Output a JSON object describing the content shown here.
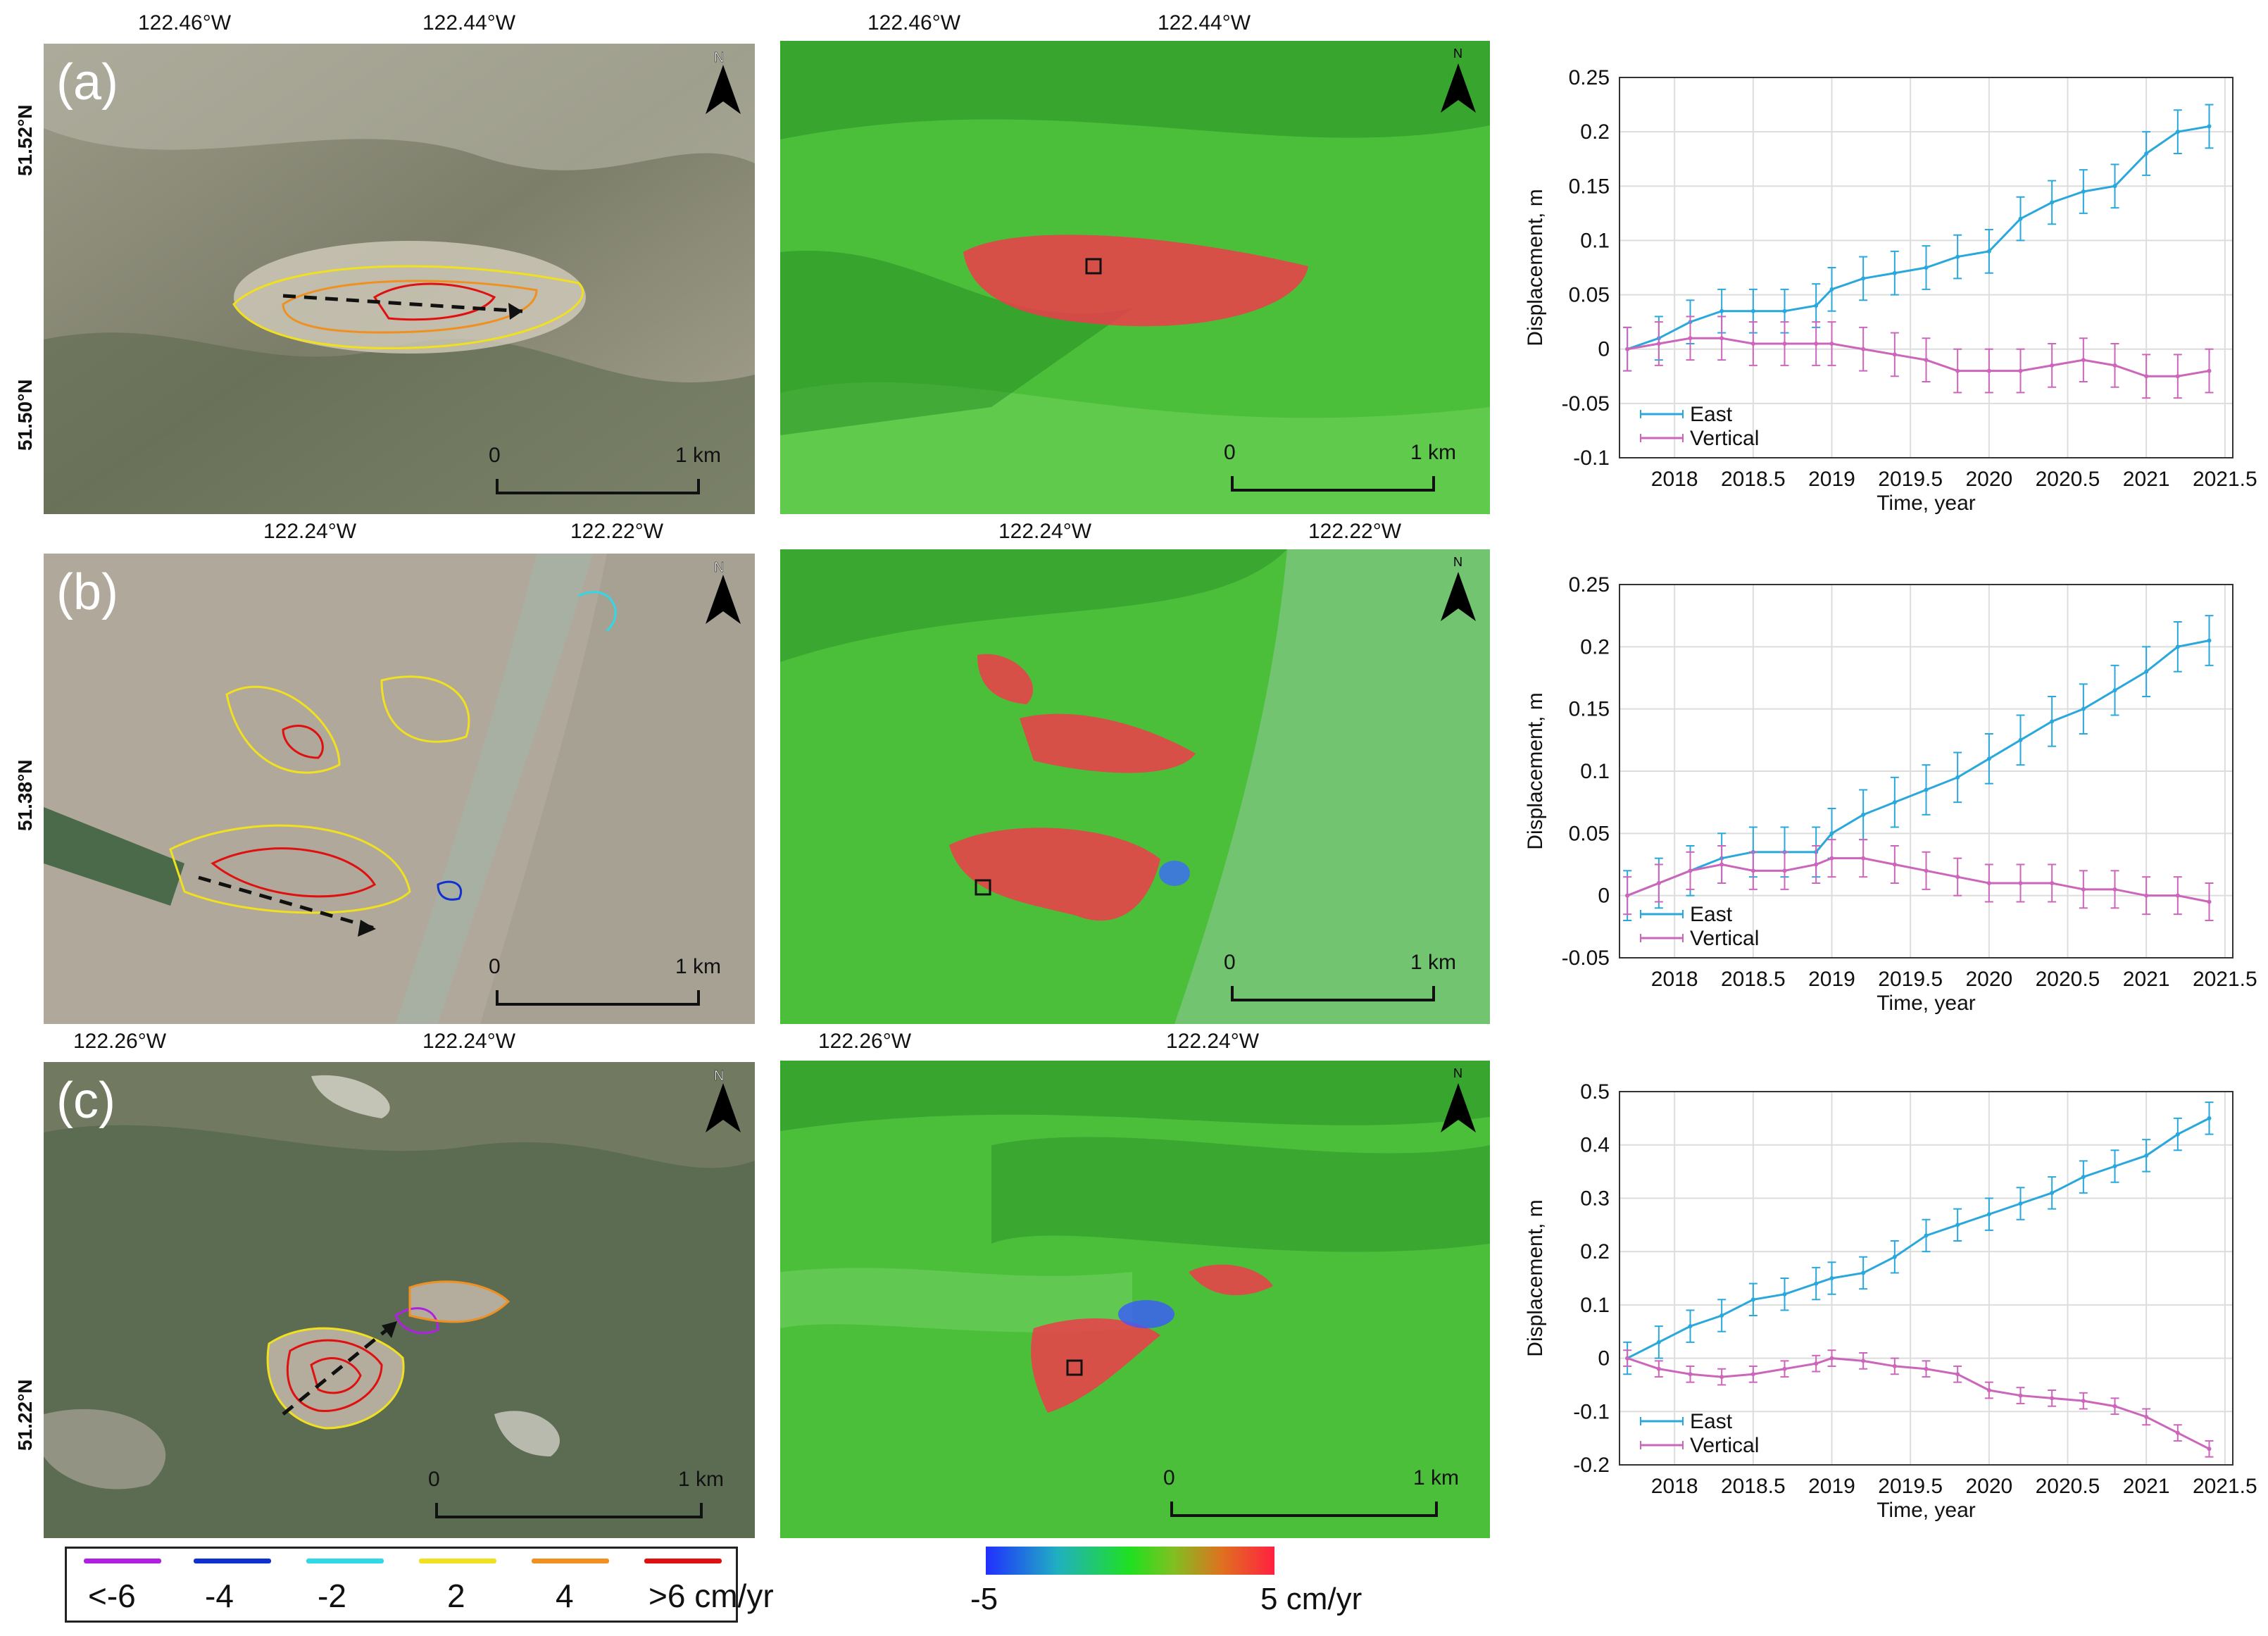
{
  "rows": [
    {
      "label": "(a)",
      "optical_lon_ticks": [
        "122.46°W",
        "122.44°W"
      ],
      "optical_lat_ticks": [
        "51.52°N",
        "51.50°N"
      ],
      "velocity_lon_ticks": [
        "122.46°W",
        "122.44°W"
      ],
      "scale_start": "0",
      "scale_end": "1 km",
      "north": "N"
    },
    {
      "label": "(b)",
      "optical_lon_ticks": [
        "122.24°W",
        "122.22°W"
      ],
      "optical_lat_ticks": [
        "51.38°N"
      ],
      "velocity_lon_ticks": [
        "122.24°W",
        "122.22°W"
      ],
      "scale_start": "0",
      "scale_end": "1 km",
      "north": "N"
    },
    {
      "label": "(c)",
      "optical_lon_ticks": [
        "122.26°W",
        "122.24°W"
      ],
      "optical_lat_ticks": [
        "51.22°N"
      ],
      "velocity_lon_ticks": [
        "122.26°W",
        "122.24°W"
      ],
      "scale_start": "0",
      "scale_end": "1 km",
      "north": "N"
    }
  ],
  "contour_legend": {
    "items": [
      {
        "label": "<-6",
        "color": "#b020e0"
      },
      {
        "label": "-4",
        "color": "#1030d0"
      },
      {
        "label": "-2",
        "color": "#30d8e8"
      },
      {
        "label": "2",
        "color": "#f0e020"
      },
      {
        "label": "4",
        "color": "#f09020"
      },
      {
        "label": ">6 cm/yr",
        "color": "#e01010"
      }
    ]
  },
  "colorbar": {
    "min_label": "-5",
    "max_label": "5 cm/yr"
  },
  "chart_data": [
    {
      "type": "line",
      "title": "",
      "xlabel": "Time, year",
      "ylabel": "Displacement, m",
      "xlim": [
        2017.65,
        2021.55
      ],
      "ylim": [
        -0.1,
        0.25
      ],
      "xticks": [
        2018,
        2018.5,
        2019,
        2019.5,
        2020,
        2020.5,
        2021,
        2021.5
      ],
      "xtick_labels": [
        "2018",
        "2018.5",
        "2019",
        "2019.5",
        "2020",
        "2020.5",
        "2021",
        "2021.5"
      ],
      "yticks": [
        -0.1,
        -0.05,
        0,
        0.05,
        0.1,
        0.15,
        0.2,
        0.25
      ],
      "ytick_labels": [
        "-0.1",
        "-0.05",
        "0",
        "0.05",
        "0.1",
        "0.15",
        "0.2",
        "0.25"
      ],
      "legend": "bottom-left",
      "series": [
        {
          "name": "East",
          "color": "#2aa8dc",
          "err": 0.02,
          "x": [
            2017.7,
            2017.9,
            2018.1,
            2018.3,
            2018.5,
            2018.7,
            2018.9,
            2019.0,
            2019.2,
            2019.4,
            2019.6,
            2019.8,
            2020.0,
            2020.2,
            2020.4,
            2020.6,
            2020.8,
            2021.0,
            2021.2,
            2021.4
          ],
          "y": [
            0.0,
            0.01,
            0.025,
            0.035,
            0.035,
            0.035,
            0.04,
            0.055,
            0.065,
            0.07,
            0.075,
            0.085,
            0.09,
            0.12,
            0.135,
            0.145,
            0.15,
            0.18,
            0.2,
            0.205
          ]
        },
        {
          "name": "Vertical",
          "color": "#cc66bb",
          "err": 0.02,
          "x": [
            2017.7,
            2017.9,
            2018.1,
            2018.3,
            2018.5,
            2018.7,
            2018.9,
            2019.0,
            2019.2,
            2019.4,
            2019.6,
            2019.8,
            2020.0,
            2020.2,
            2020.4,
            2020.6,
            2020.8,
            2021.0,
            2021.2,
            2021.4
          ],
          "y": [
            0.0,
            0.005,
            0.01,
            0.01,
            0.005,
            0.005,
            0.005,
            0.005,
            0.0,
            -0.005,
            -0.01,
            -0.02,
            -0.02,
            -0.02,
            -0.015,
            -0.01,
            -0.015,
            -0.025,
            -0.025,
            -0.02
          ]
        }
      ]
    },
    {
      "type": "line",
      "title": "",
      "xlabel": "Time, year",
      "ylabel": "Displacement, m",
      "xlim": [
        2017.65,
        2021.55
      ],
      "ylim": [
        -0.05,
        0.25
      ],
      "xticks": [
        2018,
        2018.5,
        2019,
        2019.5,
        2020,
        2020.5,
        2021,
        2021.5
      ],
      "xtick_labels": [
        "2018",
        "2018.5",
        "2019",
        "2019.5",
        "2020",
        "2020.5",
        "2021",
        "2021.5"
      ],
      "yticks": [
        -0.05,
        0,
        0.05,
        0.1,
        0.15,
        0.2,
        0.25
      ],
      "ytick_labels": [
        "-0.05",
        "0",
        "0.05",
        "0.1",
        "0.15",
        "0.2",
        "0.25"
      ],
      "legend": "bottom-left",
      "series": [
        {
          "name": "East",
          "color": "#2aa8dc",
          "err": 0.02,
          "x": [
            2017.7,
            2017.9,
            2018.1,
            2018.3,
            2018.5,
            2018.7,
            2018.9,
            2019.0,
            2019.2,
            2019.4,
            2019.6,
            2019.8,
            2020.0,
            2020.2,
            2020.4,
            2020.6,
            2020.8,
            2021.0,
            2021.2,
            2021.4
          ],
          "y": [
            0.0,
            0.01,
            0.02,
            0.03,
            0.035,
            0.035,
            0.035,
            0.05,
            0.065,
            0.075,
            0.085,
            0.095,
            0.11,
            0.125,
            0.14,
            0.15,
            0.165,
            0.18,
            0.2,
            0.205
          ]
        },
        {
          "name": "Vertical",
          "color": "#cc66bb",
          "err": 0.015,
          "x": [
            2017.7,
            2017.9,
            2018.1,
            2018.3,
            2018.5,
            2018.7,
            2018.9,
            2019.0,
            2019.2,
            2019.4,
            2019.6,
            2019.8,
            2020.0,
            2020.2,
            2020.4,
            2020.6,
            2020.8,
            2021.0,
            2021.2,
            2021.4
          ],
          "y": [
            0.0,
            0.01,
            0.02,
            0.025,
            0.02,
            0.02,
            0.025,
            0.03,
            0.03,
            0.025,
            0.02,
            0.015,
            0.01,
            0.01,
            0.01,
            0.005,
            0.005,
            0.0,
            0.0,
            -0.005
          ]
        }
      ]
    },
    {
      "type": "line",
      "title": "",
      "xlabel": "Time, year",
      "ylabel": "Displacement, m",
      "xlim": [
        2017.65,
        2021.55
      ],
      "ylim": [
        -0.2,
        0.5
      ],
      "xticks": [
        2018,
        2018.5,
        2019,
        2019.5,
        2020,
        2020.5,
        2021,
        2021.5
      ],
      "xtick_labels": [
        "2018",
        "2018.5",
        "2019",
        "2019.5",
        "2020",
        "2020.5",
        "2021",
        "2021.5"
      ],
      "yticks": [
        -0.2,
        -0.1,
        0,
        0.1,
        0.2,
        0.3,
        0.4,
        0.5
      ],
      "ytick_labels": [
        "-0.2",
        "-0.1",
        "0",
        "0.1",
        "0.2",
        "0.3",
        "0.4",
        "0.5"
      ],
      "legend": "bottom-left",
      "series": [
        {
          "name": "East",
          "color": "#2aa8dc",
          "err": 0.03,
          "x": [
            2017.7,
            2017.9,
            2018.1,
            2018.3,
            2018.5,
            2018.7,
            2018.9,
            2019.0,
            2019.2,
            2019.4,
            2019.6,
            2019.8,
            2020.0,
            2020.2,
            2020.4,
            2020.6,
            2020.8,
            2021.0,
            2021.2,
            2021.4
          ],
          "y": [
            0.0,
            0.03,
            0.06,
            0.08,
            0.11,
            0.12,
            0.14,
            0.15,
            0.16,
            0.19,
            0.23,
            0.25,
            0.27,
            0.29,
            0.31,
            0.34,
            0.36,
            0.38,
            0.42,
            0.45
          ]
        },
        {
          "name": "Vertical",
          "color": "#cc66bb",
          "err": 0.015,
          "x": [
            2017.7,
            2017.9,
            2018.1,
            2018.3,
            2018.5,
            2018.7,
            2018.9,
            2019.0,
            2019.2,
            2019.4,
            2019.6,
            2019.8,
            2020.0,
            2020.2,
            2020.4,
            2020.6,
            2020.8,
            2021.0,
            2021.2,
            2021.4
          ],
          "y": [
            0.0,
            -0.02,
            -0.03,
            -0.035,
            -0.03,
            -0.02,
            -0.01,
            0.0,
            -0.005,
            -0.015,
            -0.02,
            -0.03,
            -0.06,
            -0.07,
            -0.075,
            -0.08,
            -0.09,
            -0.11,
            -0.14,
            -0.17
          ]
        }
      ]
    }
  ]
}
